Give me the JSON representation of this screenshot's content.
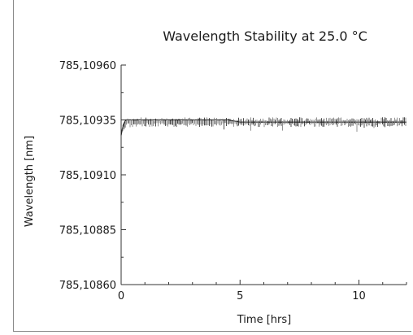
{
  "chart_data": {
    "type": "line",
    "title": "Wavelength Stability at 25.0 °C",
    "xlabel": "Time [hrs]",
    "ylabel": "Wavelength [nm]",
    "xlim": [
      0,
      12
    ],
    "ylim": [
      785.1086,
      785.1096
    ],
    "x_ticks": [
      0,
      5,
      10
    ],
    "x_tick_labels": [
      "0",
      "5",
      "10"
    ],
    "y_ticks": [
      785.1086,
      785.10885,
      785.1091,
      785.10935,
      785.1096
    ],
    "y_tick_labels": [
      "785,10860",
      "785,10885",
      "785,10910",
      "785,10935",
      "785,10960"
    ],
    "grid": false,
    "series": [
      {
        "color": "#222222",
        "x": [
          0,
          0.05,
          0.1,
          0.2,
          0.3,
          0.5,
          1,
          1.5,
          2,
          2.5,
          3,
          3.5,
          4,
          4.5,
          5,
          5.5,
          6,
          6.5,
          7,
          7.5,
          8,
          8.5,
          9,
          9.5,
          10,
          10.5,
          11,
          11.5,
          12
        ],
        "y": [
          785.10928,
          785.10931,
          785.10933,
          785.10935,
          785.10935,
          785.10935,
          785.10935,
          785.10935,
          785.10935,
          785.10935,
          785.10935,
          785.10935,
          785.10935,
          785.10935,
          785.10934,
          785.10934,
          785.10934,
          785.10934,
          785.10934,
          785.10934,
          785.10934,
          785.10934,
          785.10934,
          785.10934,
          785.10934,
          785.10934,
          785.10934,
          785.10934,
          785.10934
        ]
      }
    ]
  }
}
